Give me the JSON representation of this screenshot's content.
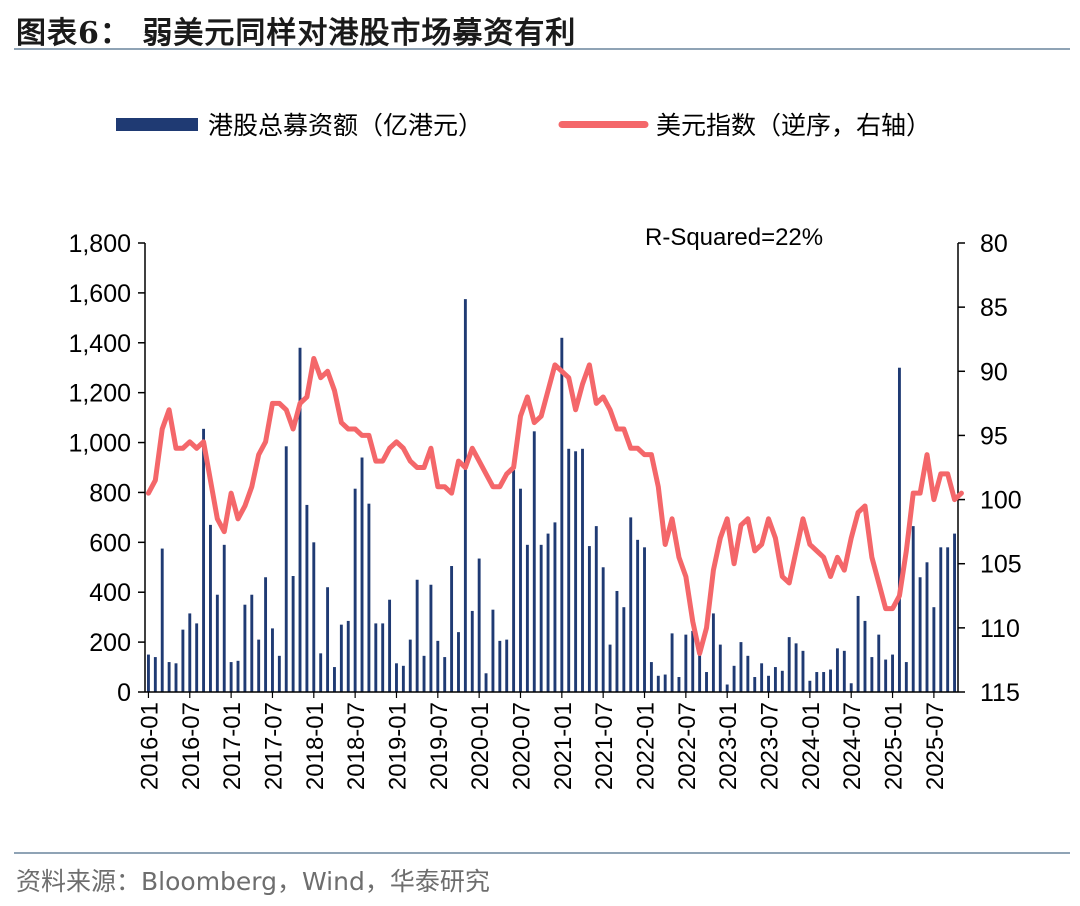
{
  "title": "图表6：  弱美元同样对港股市场募资有利",
  "source": "资料来源：Bloomberg，Wind，华泰研究",
  "colors": {
    "bar": "#1f3a73",
    "line": "#f4676a",
    "text": "#000000",
    "rule": "#8fa3b5"
  },
  "chart_data": {
    "type": "bar+line",
    "annotation": "R-Squared=22%",
    "legend": [
      "港股总募资额（亿港元）",
      "美元指数（逆序，右轴）"
    ],
    "left_axis": {
      "min": 0,
      "max": 1800,
      "ticks": [
        "0",
        "200",
        "400",
        "600",
        "800",
        "1,000",
        "1,200",
        "1,400",
        "1,600",
        "1,800"
      ]
    },
    "right_axis": {
      "min": 80,
      "max": 115,
      "reversed": true,
      "ticks": [
        "80",
        "85",
        "90",
        "95",
        "100",
        "105",
        "110",
        "115"
      ]
    },
    "x_tick_labels": [
      "2016-01",
      "2016-07",
      "2017-01",
      "2017-07",
      "2018-01",
      "2018-07",
      "2019-01",
      "2019-07",
      "2020-01",
      "2020-07",
      "2021-01",
      "2021-07",
      "2022-01",
      "2022-07",
      "2023-01",
      "2023-07",
      "2024-01",
      "2024-07",
      "2025-01",
      "2025-07"
    ],
    "start_month": "2016-01",
    "series": [
      {
        "name": "港股总募资额（亿港元）",
        "axis": "left",
        "kind": "bar",
        "values": [
          150,
          140,
          575,
          120,
          115,
          250,
          315,
          275,
          1055,
          670,
          390,
          590,
          120,
          125,
          350,
          390,
          210,
          460,
          255,
          145,
          985,
          465,
          1380,
          750,
          600,
          155,
          420,
          100,
          270,
          285,
          815,
          940,
          755,
          275,
          275,
          370,
          115,
          105,
          210,
          450,
          145,
          430,
          205,
          140,
          505,
          240,
          1575,
          325,
          535,
          75,
          330,
          205,
          210,
          890,
          815,
          590,
          1045,
          590,
          635,
          680,
          1420,
          975,
          965,
          975,
          585,
          665,
          500,
          190,
          405,
          340,
          700,
          610,
          580,
          120,
          65,
          70,
          235,
          60,
          230,
          245,
          170,
          80,
          315,
          190,
          30,
          105,
          200,
          145,
          60,
          115,
          65,
          100,
          85,
          220,
          195,
          165,
          45,
          80,
          80,
          90,
          175,
          165,
          35,
          385,
          285,
          140,
          230,
          130,
          150,
          1300,
          120,
          665,
          460,
          520,
          340,
          580,
          580,
          635
        ]
      },
      {
        "name": "美元指数（逆序，右轴）",
        "axis": "right",
        "kind": "line",
        "values": [
          99.5,
          98.5,
          94.5,
          93,
          96,
          96,
          95.5,
          96,
          95.5,
          98.5,
          101.5,
          102.5,
          99.5,
          101.5,
          100.5,
          99,
          96.5,
          95.5,
          92.5,
          92.5,
          93,
          94.5,
          92.5,
          92,
          89,
          90.5,
          90,
          91.5,
          94,
          94.5,
          94.5,
          95,
          95,
          97,
          97,
          96,
          95.5,
          96,
          97,
          97.5,
          97.5,
          96,
          99,
          99,
          99.5,
          97,
          97.5,
          96,
          97,
          98,
          99,
          99,
          98,
          97.5,
          93.5,
          92,
          94,
          93.5,
          91.5,
          89.5,
          90,
          90.5,
          93,
          91,
          89.5,
          92.5,
          92,
          93,
          94.5,
          94.5,
          96,
          96,
          96.5,
          96.5,
          99,
          103.5,
          101.5,
          104.5,
          106,
          109.5,
          112,
          110,
          105.5,
          103,
          101.5,
          105,
          102,
          101.5,
          104,
          103.5,
          101.5,
          103,
          106,
          106.5,
          104,
          101.5,
          103.5,
          104,
          104.5,
          106,
          104.5,
          105.5,
          103,
          101,
          100.5,
          104.5,
          106.5,
          108.5,
          108.5,
          107.5,
          104,
          99.5,
          99.5,
          96.5,
          100,
          98,
          98,
          100,
          99.5
        ]
      }
    ]
  }
}
